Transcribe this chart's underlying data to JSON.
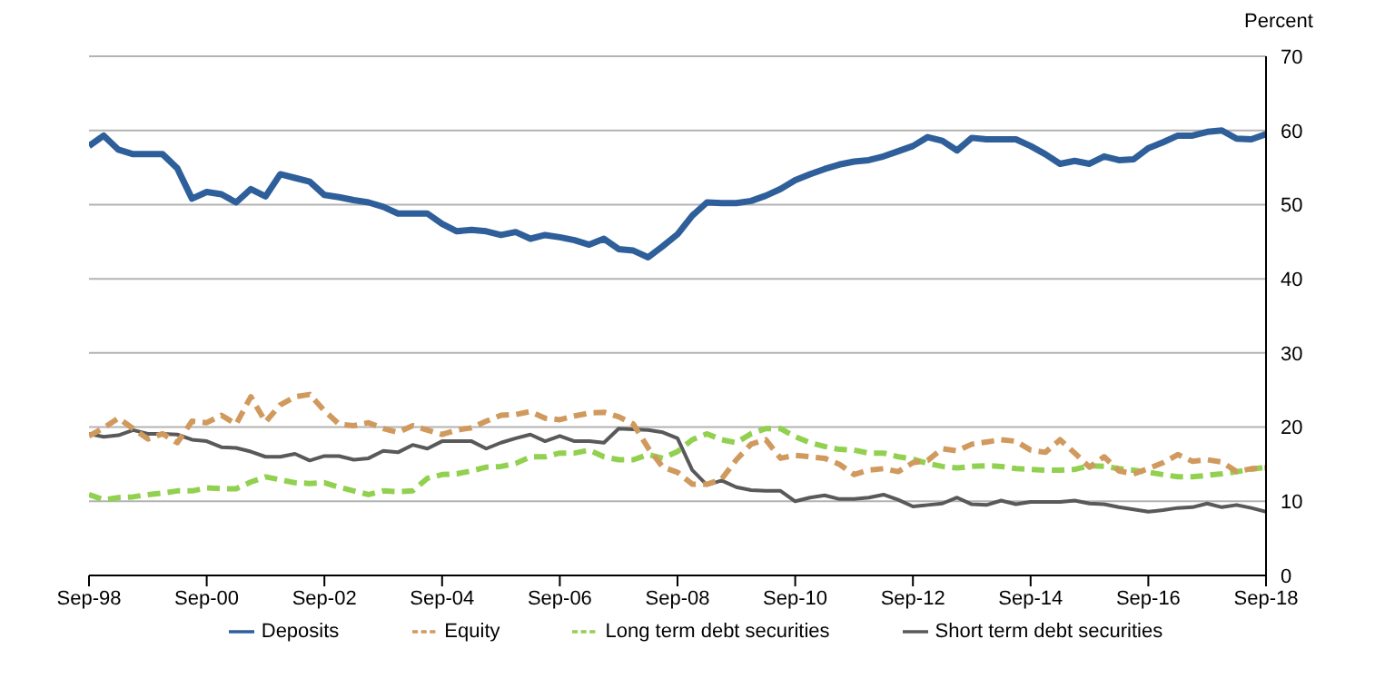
{
  "chart_data": {
    "type": "line",
    "ylabel": "Percent",
    "categories": [
      "Sep-98",
      null,
      null,
      null,
      null,
      null,
      null,
      null,
      "Sep-00",
      null,
      null,
      null,
      null,
      null,
      null,
      null,
      "Sep-02",
      null,
      null,
      null,
      null,
      null,
      null,
      null,
      "Sep-04",
      null,
      null,
      null,
      null,
      null,
      null,
      null,
      "Sep-06",
      null,
      null,
      null,
      null,
      null,
      null,
      null,
      "Sep-08",
      null,
      null,
      null,
      null,
      null,
      null,
      null,
      "Sep-10",
      null,
      null,
      null,
      null,
      null,
      null,
      null,
      "Sep-12",
      null,
      null,
      null,
      null,
      null,
      null,
      null,
      "Sep-14",
      null,
      null,
      null,
      null,
      null,
      null,
      null,
      "Sep-16",
      null,
      null,
      null,
      null,
      null,
      null,
      null,
      "Sep-18"
    ],
    "series": [
      {
        "name": "Deposits",
        "color": "#2e5f9a",
        "line_style": "solid",
        "values": [
          57.9,
          59.3,
          57.4,
          56.8,
          56.8,
          56.8,
          54.9,
          50.8,
          51.7,
          51.4,
          50.3,
          52.1,
          51.1,
          54.1,
          53.6,
          53.1,
          51.3,
          51.0,
          50.6,
          50.3,
          49.7,
          48.8,
          48.8,
          48.8,
          47.4,
          46.4,
          46.6,
          46.4,
          45.9,
          46.3,
          45.4,
          45.9,
          45.6,
          45.2,
          44.6,
          45.4,
          44.0,
          43.8,
          42.9,
          44.4,
          46.0,
          48.5,
          50.3,
          50.2,
          50.2,
          50.5,
          51.2,
          52.1,
          53.3,
          54.1,
          54.8,
          55.4,
          55.8,
          56.0,
          56.5,
          57.2,
          57.9,
          59.1,
          58.6,
          57.3,
          59.0,
          58.8,
          58.8,
          58.8,
          57.9,
          56.8,
          55.5,
          55.9,
          55.5,
          56.5,
          56.0,
          56.1,
          57.6,
          58.4,
          59.3,
          59.3,
          59.8,
          60.0,
          58.9,
          58.8,
          59.5
        ]
      },
      {
        "name": "Short term debt securities",
        "color": "#595959",
        "line_style": "solid",
        "values": [
          19.1,
          18.7,
          18.9,
          19.6,
          19.1,
          19.1,
          19.0,
          18.3,
          18.1,
          17.3,
          17.2,
          16.7,
          16.0,
          16.0,
          16.4,
          15.5,
          16.1,
          16.1,
          15.6,
          15.8,
          16.8,
          16.6,
          17.6,
          17.1,
          18.1,
          18.1,
          18.1,
          17.1,
          17.9,
          18.5,
          19.0,
          18.1,
          18.8,
          18.1,
          18.1,
          17.9,
          19.8,
          19.7,
          19.6,
          19.3,
          18.5,
          14.2,
          12.2,
          12.8,
          11.9,
          11.5,
          11.4,
          11.4,
          10.0,
          10.5,
          10.8,
          10.3,
          10.3,
          10.5,
          10.9,
          10.2,
          9.3,
          9.5,
          9.7,
          10.5,
          9.6,
          9.5,
          10.1,
          9.6,
          9.9,
          9.9,
          9.9,
          10.1,
          9.7,
          9.6,
          9.2,
          8.9,
          8.6,
          8.8,
          9.1,
          9.2,
          9.7,
          9.2,
          9.5,
          9.1,
          8.6
        ]
      },
      {
        "name": "Long term debt securities",
        "color": "#92d050",
        "line_style": "dashed",
        "values": [
          10.9,
          10.2,
          10.5,
          10.6,
          10.9,
          11.1,
          11.4,
          11.4,
          11.8,
          11.7,
          11.7,
          12.6,
          13.3,
          12.9,
          12.5,
          12.4,
          12.5,
          11.9,
          11.4,
          10.9,
          11.4,
          11.3,
          11.4,
          13.1,
          13.6,
          13.7,
          14.1,
          14.6,
          14.7,
          15.1,
          16.0,
          16.0,
          16.5,
          16.5,
          16.9,
          16.0,
          15.6,
          15.6,
          16.3,
          15.8,
          16.7,
          18.3,
          19.1,
          18.3,
          17.9,
          19.1,
          19.8,
          19.8,
          18.7,
          17.9,
          17.4,
          17.0,
          16.9,
          16.5,
          16.5,
          16.0,
          15.7,
          15.1,
          14.7,
          14.5,
          14.7,
          14.8,
          14.7,
          14.4,
          14.3,
          14.2,
          14.2,
          14.3,
          14.8,
          14.7,
          14.4,
          14.2,
          13.9,
          13.6,
          13.3,
          13.3,
          13.5,
          13.7,
          14.0,
          14.3,
          14.6
        ]
      },
      {
        "name": "Equity",
        "color": "#d09a5e",
        "line_style": "dashed",
        "values": [
          18.8,
          19.9,
          21.2,
          19.8,
          18.4,
          19.1,
          17.9,
          20.8,
          20.6,
          21.6,
          20.4,
          24.1,
          20.7,
          23.0,
          24.1,
          24.4,
          22.2,
          20.4,
          20.2,
          20.6,
          19.8,
          19.3,
          20.2,
          19.6,
          19.0,
          19.6,
          19.9,
          20.8,
          21.6,
          21.7,
          22.1,
          21.2,
          21.0,
          21.5,
          21.9,
          22.0,
          21.4,
          20.4,
          17.2,
          14.6,
          13.9,
          12.3,
          12.3,
          13.0,
          15.6,
          17.7,
          18.3,
          15.8,
          16.2,
          16.0,
          15.8,
          15.0,
          13.6,
          14.2,
          14.4,
          14.0,
          15.2,
          15.5,
          17.1,
          16.8,
          17.7,
          18.0,
          18.3,
          18.1,
          16.9,
          16.6,
          18.3,
          16.5,
          14.6,
          16.0,
          14.1,
          13.7,
          14.4,
          15.2,
          16.3,
          15.4,
          15.6,
          15.3,
          14.0,
          14.4,
          14.5
        ]
      }
    ],
    "ylim": [
      0,
      70
    ],
    "yticks": [
      0,
      10,
      20,
      30,
      40,
      50,
      60,
      70
    ],
    "grid": "y",
    "legend": "bottom",
    "marker": "none"
  }
}
